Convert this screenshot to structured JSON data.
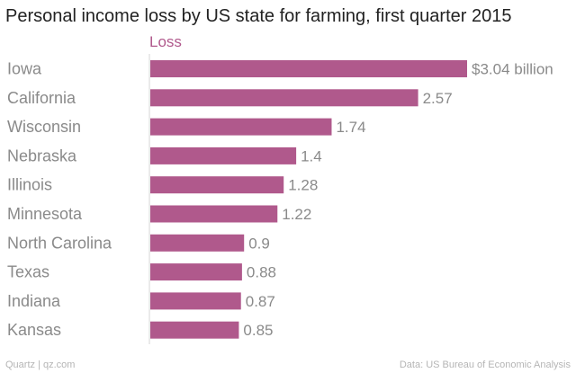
{
  "chart_data": {
    "type": "bar",
    "orientation": "horizontal",
    "title": "Personal income loss by US state for farming, first quarter 2015",
    "series": [
      {
        "name": "Loss",
        "color": "#b0598c",
        "values": [
          3.04,
          2.57,
          1.74,
          1.4,
          1.28,
          1.22,
          0.9,
          0.88,
          0.87,
          0.85
        ]
      }
    ],
    "categories": [
      "Iowa",
      "California",
      "Wisconsin",
      "Nebraska",
      "Illinois",
      "Minnesota",
      "North Carolina",
      "Texas",
      "Indiana",
      "Kansas"
    ],
    "value_labels": [
      "$3.04 billion",
      "2.57",
      "1.74",
      "1.4",
      "1.28",
      "1.22",
      "0.9",
      "0.88",
      "0.87",
      "0.85"
    ],
    "xlim": [
      0,
      3.04
    ],
    "unit": "$ billion",
    "grid": false,
    "legend_position": "top-left"
  },
  "footer": {
    "source_left": "Quartz | qz.com",
    "source_right": "Data: US Bureau of Economic Analysis"
  },
  "colors": {
    "bar": "#b0598c",
    "legend_text": "#b0598c",
    "axis_line": "#d6d6d6",
    "label_text": "#8a8a8a",
    "title_text": "#222222",
    "footer_text": "#b5b5b5"
  }
}
